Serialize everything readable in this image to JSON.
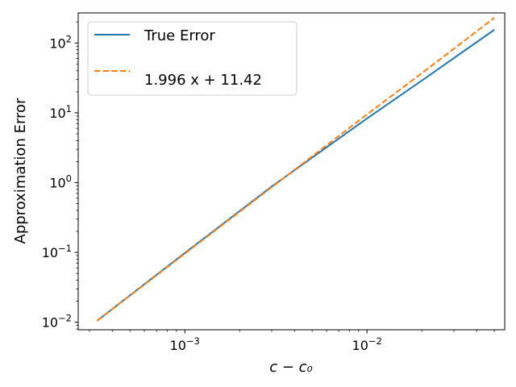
{
  "chart_data": {
    "type": "line",
    "title": "",
    "xlabel": "c − c₀",
    "ylabel": "Approximation Error",
    "xscale": "log",
    "yscale": "log",
    "xlim": [
      0.00026,
      0.057
    ],
    "ylim": [
      0.0078,
      270
    ],
    "grid": false,
    "legend": "top-left",
    "x_ticks": [
      {
        "value": 0.001,
        "base": "10",
        "exp": "−3"
      },
      {
        "value": 0.01,
        "base": "10",
        "exp": "−2"
      }
    ],
    "y_ticks": [
      {
        "value": 0.01,
        "base": "10",
        "exp": "−2"
      },
      {
        "value": 0.1,
        "base": "10",
        "exp": "−1"
      },
      {
        "value": 1,
        "base": "10",
        "exp": "0"
      },
      {
        "value": 10,
        "base": "10",
        "exp": "1"
      },
      {
        "value": 100,
        "base": "10",
        "exp": "2"
      }
    ],
    "series": [
      {
        "name": "True Error",
        "style": "solid",
        "color": "#1f77b4",
        "x": [
          0.00033,
          0.001,
          0.003,
          0.01,
          0.02,
          0.05
        ],
        "y": [
          0.0105,
          0.098,
          0.88,
          8.3,
          29,
          155
        ]
      },
      {
        "name": "1.996 x + 11.42",
        "style": "dashed",
        "color": "#ff7f0e",
        "x": [
          0.00033,
          0.001,
          0.003,
          0.01,
          0.02,
          0.05
        ],
        "y": [
          0.0105,
          0.096,
          0.86,
          9.5,
          37,
          230
        ]
      }
    ]
  }
}
